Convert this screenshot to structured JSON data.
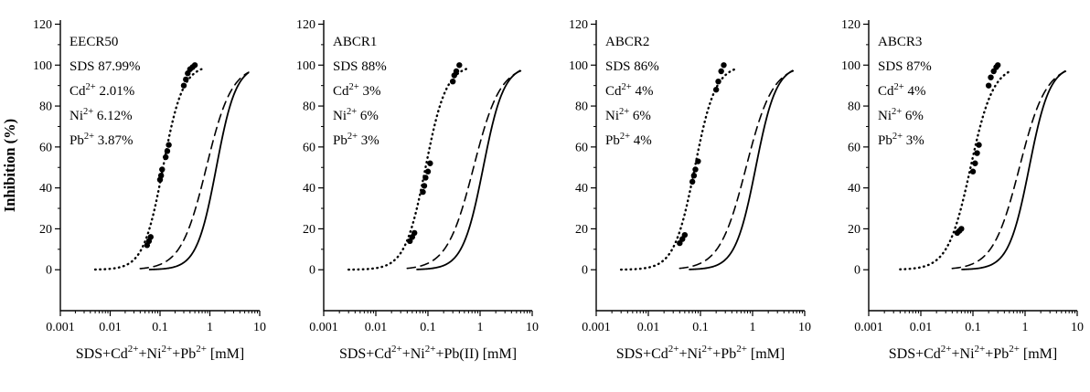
{
  "figure_ylabel": "Inhibition (%)",
  "chart_data": [
    {
      "type": "line",
      "title": "EECR50",
      "ylabel": "Inhibition (%)",
      "annotation_lines": [
        [
          {
            "t": "EECR50"
          }
        ],
        [
          {
            "t": "SDS 87.99%"
          }
        ],
        [
          {
            "t": "Cd"
          },
          {
            "sup": "2+"
          },
          {
            "t": " 2.01%"
          }
        ],
        [
          {
            "t": "Ni"
          },
          {
            "sup": "2+"
          },
          {
            "t": " 6.12%"
          }
        ],
        [
          {
            "t": "Pb"
          },
          {
            "sup": "2+"
          },
          {
            "t": " 3.87%"
          }
        ]
      ],
      "xlabel": [
        {
          "t": "SDS+Cd"
        },
        {
          "sup": "2+"
        },
        {
          "t": "+Ni"
        },
        {
          "sup": "2+"
        },
        {
          "t": "+Pb"
        },
        {
          "sup": "2+"
        },
        {
          "t": " [mM]"
        }
      ],
      "xscale": "log",
      "xlim": [
        0.001,
        10
      ],
      "ylim": [
        -20,
        122
      ],
      "x_ticks": [
        0.001,
        0.01,
        0.1,
        1,
        10
      ],
      "x_tick_labels": [
        "0.001",
        "0.01",
        "0.1",
        "1",
        "10"
      ],
      "y_ticks": [
        0,
        20,
        40,
        60,
        80,
        100,
        120
      ],
      "series": [
        {
          "name": "observed-dotted",
          "style": "dotted-markers",
          "ec50": 0.115,
          "hill": 2.2,
          "x_range": [
            0.005,
            0.7
          ]
        },
        {
          "name": "fit-dashed",
          "style": "dashed",
          "ec50": 0.85,
          "hill": 1.7,
          "x_range": [
            0.04,
            6
          ]
        },
        {
          "name": "fit-solid",
          "style": "solid",
          "ec50": 1.35,
          "hill": 2.2,
          "x_range": [
            0.06,
            6
          ]
        }
      ],
      "points": [
        [
          0.055,
          12
        ],
        [
          0.06,
          14
        ],
        [
          0.065,
          16
        ],
        [
          0.1,
          44
        ],
        [
          0.105,
          46
        ],
        [
          0.11,
          49
        ],
        [
          0.13,
          55
        ],
        [
          0.14,
          58
        ],
        [
          0.15,
          61
        ],
        [
          0.3,
          90
        ],
        [
          0.33,
          93
        ],
        [
          0.36,
          96
        ],
        [
          0.4,
          98
        ],
        [
          0.45,
          99
        ],
        [
          0.5,
          100
        ]
      ]
    },
    {
      "type": "line",
      "title": "ABCR1",
      "ylabel": "",
      "annotation_lines": [
        [
          {
            "t": "ABCR1"
          }
        ],
        [
          {
            "t": "SDS 88%"
          }
        ],
        [
          {
            "t": "Cd"
          },
          {
            "sup": "2+"
          },
          {
            "t": " 3%"
          }
        ],
        [
          {
            "t": "Ni"
          },
          {
            "sup": "2+"
          },
          {
            "t": " 6%"
          }
        ],
        [
          {
            "t": "Pb"
          },
          {
            "sup": "2+"
          },
          {
            "t": " 3%"
          }
        ]
      ],
      "xlabel": [
        {
          "t": "SDS+Cd"
        },
        {
          "sup": "2+"
        },
        {
          "t": "+Ni"
        },
        {
          "sup": "2+"
        },
        {
          "t": "+Pb(II) [mM]"
        }
      ],
      "xscale": "log",
      "xlim": [
        0.001,
        10
      ],
      "ylim": [
        -20,
        122
      ],
      "x_ticks": [
        0.001,
        0.01,
        0.1,
        1,
        10
      ],
      "x_tick_labels": [
        "0.001",
        "0.01",
        "0.1",
        "1",
        "10"
      ],
      "y_ticks": [
        0,
        20,
        40,
        60,
        80,
        100,
        120
      ],
      "series": [
        {
          "name": "observed-dotted",
          "style": "dotted-markers",
          "ec50": 0.09,
          "hill": 2.2,
          "x_range": [
            0.003,
            0.55
          ]
        },
        {
          "name": "fit-dashed",
          "style": "dashed",
          "ec50": 0.75,
          "hill": 1.7,
          "x_range": [
            0.04,
            6
          ]
        },
        {
          "name": "fit-solid",
          "style": "solid",
          "ec50": 1.15,
          "hill": 2.2,
          "x_range": [
            0.06,
            6
          ]
        }
      ],
      "points": [
        [
          0.045,
          14
        ],
        [
          0.05,
          16
        ],
        [
          0.055,
          18
        ],
        [
          0.08,
          38
        ],
        [
          0.085,
          41
        ],
        [
          0.09,
          45
        ],
        [
          0.1,
          48
        ],
        [
          0.11,
          52
        ],
        [
          0.3,
          92
        ],
        [
          0.32,
          95
        ],
        [
          0.35,
          97
        ],
        [
          0.4,
          100
        ]
      ]
    },
    {
      "type": "line",
      "title": "ABCR2",
      "ylabel": "",
      "annotation_lines": [
        [
          {
            "t": "ABCR2"
          }
        ],
        [
          {
            "t": "SDS 86%"
          }
        ],
        [
          {
            "t": "Cd"
          },
          {
            "sup": "2+"
          },
          {
            "t": " 4%"
          }
        ],
        [
          {
            "t": "Ni"
          },
          {
            "sup": "2+"
          },
          {
            "t": " 6%"
          }
        ],
        [
          {
            "t": "Pb"
          },
          {
            "sup": "2+"
          },
          {
            "t": " 4%"
          }
        ]
      ],
      "xlabel": [
        {
          "t": "SDS+Cd"
        },
        {
          "sup": "2+"
        },
        {
          "t": "+Ni"
        },
        {
          "sup": "2+"
        },
        {
          "t": "+Pb"
        },
        {
          "sup": "2+"
        },
        {
          "t": " [mM]"
        }
      ],
      "xscale": "log",
      "xlim": [
        0.001,
        10
      ],
      "ylim": [
        -20,
        122
      ],
      "x_ticks": [
        0.001,
        0.01,
        0.1,
        1,
        10
      ],
      "x_tick_labels": [
        "0.001",
        "0.01",
        "0.1",
        "1",
        "10"
      ],
      "y_ticks": [
        0,
        20,
        40,
        60,
        80,
        100,
        120
      ],
      "series": [
        {
          "name": "observed-dotted",
          "style": "dotted-markers",
          "ec50": 0.078,
          "hill": 2.2,
          "x_range": [
            0.003,
            0.45
          ]
        },
        {
          "name": "fit-dashed",
          "style": "dashed",
          "ec50": 0.75,
          "hill": 1.7,
          "x_range": [
            0.04,
            6
          ]
        },
        {
          "name": "fit-solid",
          "style": "solid",
          "ec50": 1.15,
          "hill": 2.2,
          "x_range": [
            0.06,
            6
          ]
        }
      ],
      "points": [
        [
          0.04,
          13
        ],
        [
          0.045,
          15
        ],
        [
          0.05,
          17
        ],
        [
          0.07,
          43
        ],
        [
          0.075,
          46
        ],
        [
          0.08,
          49
        ],
        [
          0.09,
          53
        ],
        [
          0.2,
          88
        ],
        [
          0.22,
          92
        ],
        [
          0.25,
          97
        ],
        [
          0.28,
          100
        ]
      ]
    },
    {
      "type": "line",
      "title": "ABCR3",
      "ylabel": "",
      "annotation_lines": [
        [
          {
            "t": "ABCR3"
          }
        ],
        [
          {
            "t": "SDS 87%"
          }
        ],
        [
          {
            "t": "Cd"
          },
          {
            "sup": "2+"
          },
          {
            "t": " 4%"
          }
        ],
        [
          {
            "t": "Ni"
          },
          {
            "sup": "2+"
          },
          {
            "t": " 6%"
          }
        ],
        [
          {
            "t": "Pb"
          },
          {
            "sup": "2+"
          },
          {
            "t": " 3%"
          }
        ]
      ],
      "xlabel": [
        {
          "t": "SDS+Cd"
        },
        {
          "sup": "2+"
        },
        {
          "t": "+Ni"
        },
        {
          "sup": "2+"
        },
        {
          "t": "+Pb"
        },
        {
          "sup": "2+"
        },
        {
          "t": " [mM]"
        }
      ],
      "xscale": "log",
      "xlim": [
        0.001,
        10
      ],
      "ylim": [
        -20,
        122
      ],
      "x_ticks": [
        0.001,
        0.01,
        0.1,
        1,
        10
      ],
      "x_tick_labels": [
        "0.001",
        "0.01",
        "0.1",
        "1",
        "10"
      ],
      "y_ticks": [
        0,
        20,
        40,
        60,
        80,
        100,
        120
      ],
      "series": [
        {
          "name": "observed-dotted",
          "style": "dotted-markers",
          "ec50": 0.09,
          "hill": 2.0,
          "x_range": [
            0.004,
            0.5
          ]
        },
        {
          "name": "fit-dashed",
          "style": "dashed",
          "ec50": 0.78,
          "hill": 1.7,
          "x_range": [
            0.04,
            6
          ]
        },
        {
          "name": "fit-solid",
          "style": "solid",
          "ec50": 1.2,
          "hill": 2.2,
          "x_range": [
            0.06,
            6
          ]
        }
      ],
      "points": [
        [
          0.05,
          18
        ],
        [
          0.055,
          19
        ],
        [
          0.06,
          20
        ],
        [
          0.1,
          48
        ],
        [
          0.11,
          52
        ],
        [
          0.12,
          57
        ],
        [
          0.13,
          61
        ],
        [
          0.2,
          90
        ],
        [
          0.22,
          94
        ],
        [
          0.25,
          97
        ],
        [
          0.28,
          99
        ],
        [
          0.3,
          100
        ]
      ]
    }
  ]
}
